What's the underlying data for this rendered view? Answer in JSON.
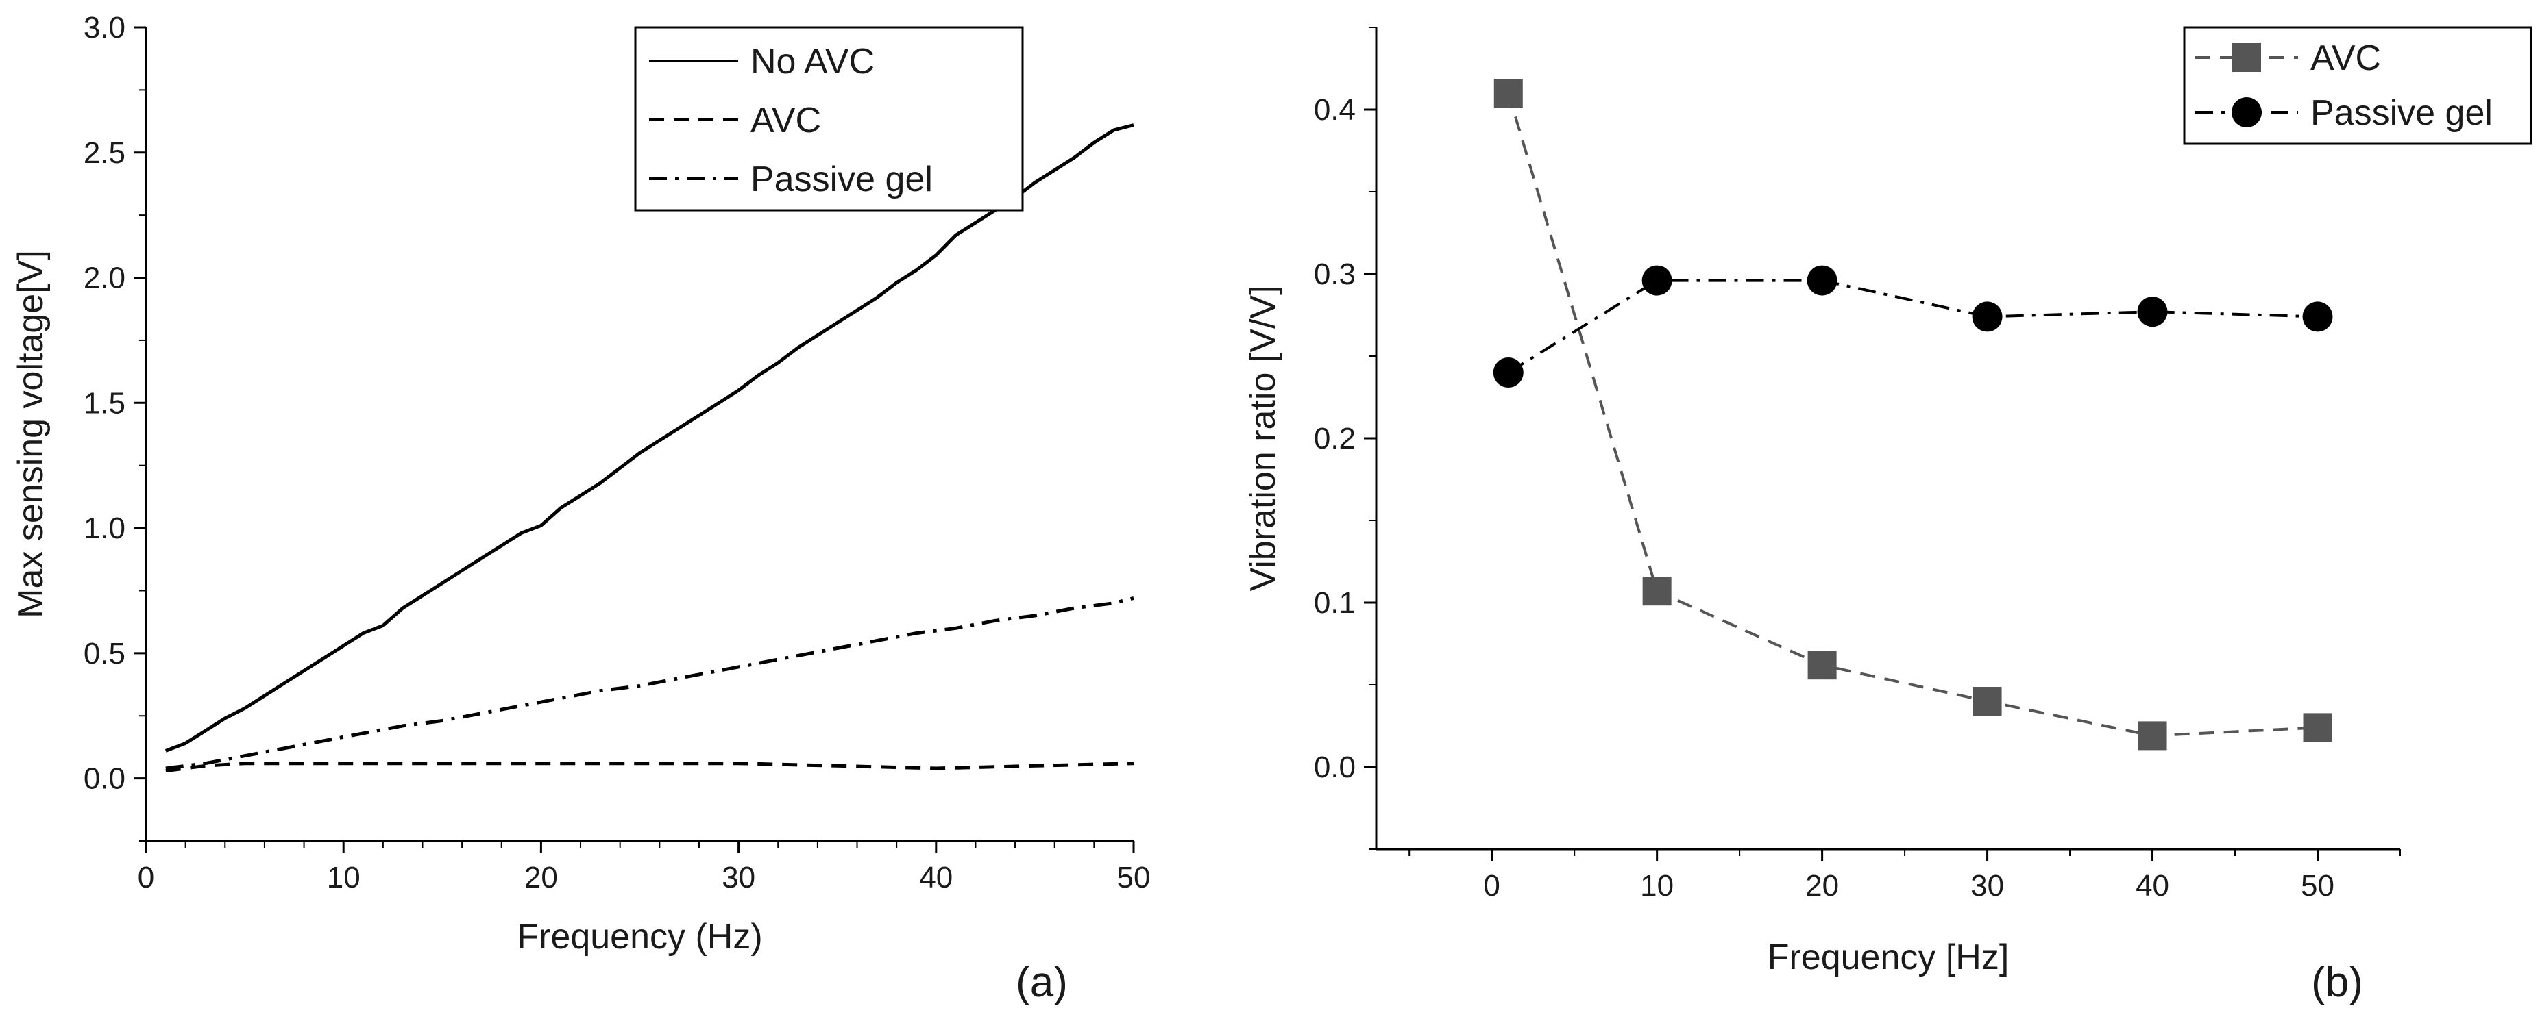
{
  "figure": {
    "panel_labels": [
      "(a)",
      "(b)"
    ]
  },
  "colors": {
    "series_a": "#000000",
    "series_b_avc": "#555555",
    "series_b_gel": "#000000"
  },
  "chart_data": [
    {
      "type": "line",
      "xlabel": "Frequency (Hz)",
      "ylabel": "Max sensing voltage[V]",
      "xlim": [
        0,
        50
      ],
      "ylim": [
        -0.25,
        3.0
      ],
      "xticks": [
        0,
        10,
        20,
        30,
        40,
        50
      ],
      "xtick_labels": [
        "0",
        "10",
        "20",
        "30",
        "40",
        "50"
      ],
      "yticks": [
        0,
        0.5,
        1.0,
        1.5,
        2.0,
        2.5,
        3.0
      ],
      "ytick_labels": [
        "0.0",
        "0.5",
        "1.0",
        "1.5",
        "2.0",
        "2.5",
        "3.0"
      ],
      "grid": false,
      "legend_position": "top-right",
      "series": [
        {
          "name": "No AVC",
          "style": "solid",
          "x": [
            1,
            2,
            3,
            4,
            5,
            6,
            7,
            8,
            9,
            10,
            11,
            12,
            13,
            14,
            15,
            16,
            17,
            18,
            19,
            20,
            21,
            22,
            23,
            24,
            25,
            26,
            27,
            28,
            29,
            30,
            31,
            32,
            33,
            34,
            35,
            36,
            37,
            38,
            39,
            40,
            41,
            42,
            43,
            44,
            45,
            46,
            47,
            48,
            49,
            50
          ],
          "values": [
            0.11,
            0.14,
            0.19,
            0.24,
            0.28,
            0.33,
            0.38,
            0.43,
            0.48,
            0.53,
            0.58,
            0.61,
            0.68,
            0.73,
            0.78,
            0.83,
            0.88,
            0.93,
            0.98,
            1.01,
            1.08,
            1.13,
            1.18,
            1.24,
            1.3,
            1.35,
            1.4,
            1.45,
            1.5,
            1.55,
            1.61,
            1.66,
            1.72,
            1.77,
            1.82,
            1.87,
            1.92,
            1.98,
            2.03,
            2.09,
            2.17,
            2.22,
            2.27,
            2.32,
            2.38,
            2.43,
            2.48,
            2.54,
            2.59,
            2.61
          ]
        },
        {
          "name": "AVC",
          "style": "dashed",
          "x": [
            1,
            3,
            5,
            10,
            15,
            20,
            25,
            30,
            35,
            40,
            45,
            50
          ],
          "values": [
            0.03,
            0.05,
            0.06,
            0.06,
            0.06,
            0.06,
            0.06,
            0.06,
            0.05,
            0.04,
            0.05,
            0.06
          ]
        },
        {
          "name": "Passive gel",
          "style": "dashdot",
          "x": [
            1,
            3,
            5,
            7,
            9,
            11,
            13,
            15,
            17,
            19,
            21,
            23,
            25,
            27,
            29,
            31,
            33,
            35,
            37,
            39,
            41,
            43,
            45,
            47,
            49,
            50
          ],
          "values": [
            0.04,
            0.06,
            0.09,
            0.12,
            0.15,
            0.18,
            0.21,
            0.23,
            0.26,
            0.29,
            0.32,
            0.35,
            0.37,
            0.4,
            0.43,
            0.46,
            0.49,
            0.52,
            0.55,
            0.58,
            0.6,
            0.63,
            0.65,
            0.68,
            0.7,
            0.72
          ]
        }
      ]
    },
    {
      "type": "line",
      "xlabel": "Frequency [Hz]",
      "ylabel": "Vibration ratio [V/V]",
      "xlim": [
        -7,
        55
      ],
      "ylim": [
        -0.05,
        0.45
      ],
      "xticks": [
        0,
        10,
        20,
        30,
        40,
        50
      ],
      "xtick_labels": [
        "0",
        "10",
        "20",
        "30",
        "40",
        "50"
      ],
      "yticks": [
        0,
        0.1,
        0.2,
        0.3,
        0.4
      ],
      "ytick_labels": [
        "0.0",
        "0.1",
        "0.2",
        "0.3",
        "0.4"
      ],
      "grid": false,
      "legend_position": "top-right",
      "series": [
        {
          "name": "AVC",
          "style": "dashed",
          "marker": "square",
          "x": [
            1,
            10,
            20,
            30,
            40,
            50
          ],
          "values": [
            0.41,
            0.107,
            0.062,
            0.04,
            0.019,
            0.024
          ]
        },
        {
          "name": "Passive gel",
          "style": "dashdot",
          "marker": "circle",
          "x": [
            1,
            10,
            20,
            30,
            40,
            50
          ],
          "values": [
            0.24,
            0.296,
            0.296,
            0.274,
            0.277,
            0.274
          ]
        }
      ]
    }
  ]
}
